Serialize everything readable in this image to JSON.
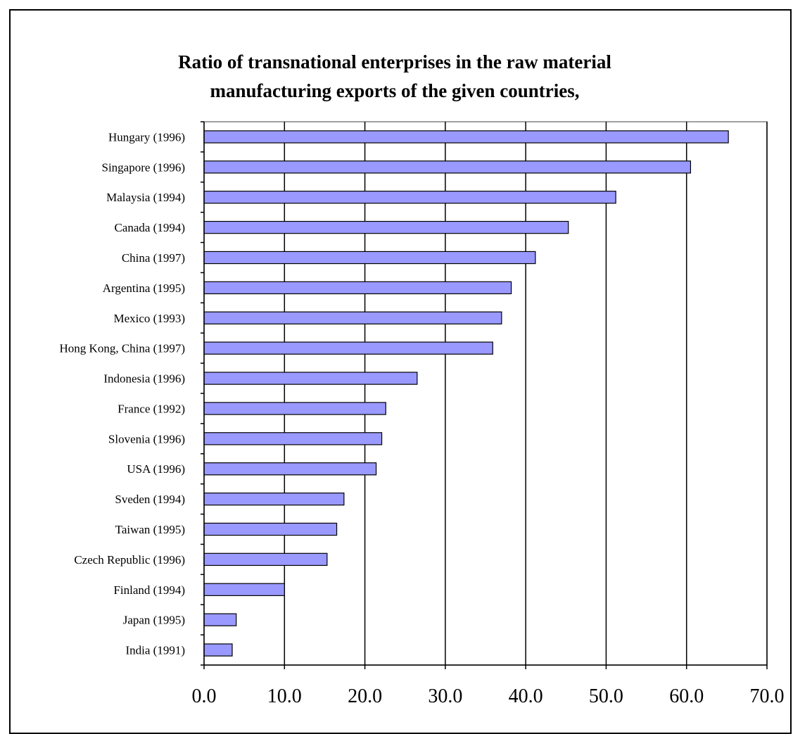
{
  "chart_data": {
    "type": "bar",
    "orientation": "horizontal",
    "title": "Ratio of transnational enterprises in the raw material manufacturing exports of the given countries,",
    "title_lines": [
      "Ratio of transnational enterprises in the raw material",
      "manufacturing exports of the given countries,"
    ],
    "xlabel": "",
    "ylabel": "",
    "categories": [
      "Hungary (1996)",
      "Singapore (1996)",
      "Malaysia (1994)",
      "Canada (1994)",
      "China (1997)",
      "Argentina (1995)",
      "Mexico (1993)",
      "Hong Kong, China (1997)",
      "Indonesia (1996)",
      "France (1992)",
      "Slovenia (1996)",
      "USA (1996)",
      "Sveden (1994)",
      "Taiwan (1995)",
      "Czech Republic (1996)",
      "Finland (1994)",
      "Japan (1995)",
      "India (1991)"
    ],
    "values": [
      65.2,
      60.5,
      51.2,
      45.3,
      41.2,
      38.2,
      37.0,
      35.9,
      26.5,
      22.6,
      22.1,
      21.4,
      17.4,
      16.5,
      15.3,
      10.0,
      4.0,
      3.5
    ],
    "xlim": [
      0,
      70
    ],
    "x_ticks": [
      0,
      10,
      20,
      30,
      40,
      50,
      60,
      70
    ],
    "x_tick_labels": [
      "0.0",
      "10.0",
      "20.0",
      "30.0",
      "40.0",
      "50.0",
      "60.0",
      "70.0"
    ],
    "grid": true,
    "legend": "none",
    "bar_color": "#9999ff",
    "bar_edge_color": "#000000"
  }
}
